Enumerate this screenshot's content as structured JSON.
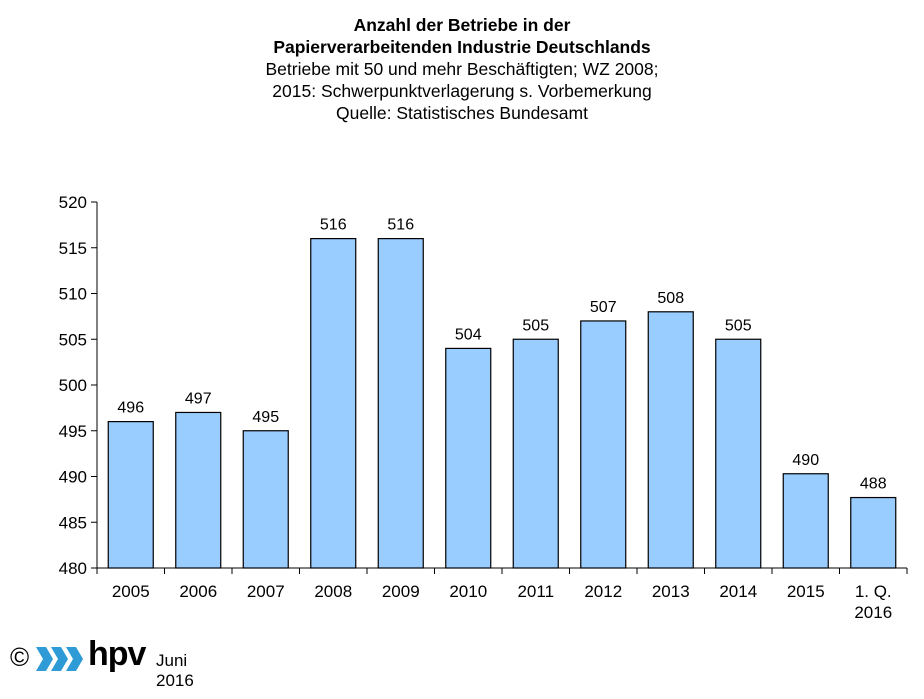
{
  "chart_data": {
    "type": "bar",
    "title_lines": [
      "Anzahl der Betriebe in der",
      "Papierverarbeitenden Industrie Deutschlands"
    ],
    "subtitle_lines": [
      "Betriebe mit 50 und mehr Beschäftigten; WZ 2008;",
      "2015: Schwerpunktverlagerung s. Vorbemerkung",
      "Quelle: Statistisches Bundesamt"
    ],
    "categories": [
      [
        "2005"
      ],
      [
        "2006"
      ],
      [
        "2007"
      ],
      [
        "2008"
      ],
      [
        "2009"
      ],
      [
        "2010"
      ],
      [
        "2011"
      ],
      [
        "2012"
      ],
      [
        "2013"
      ],
      [
        "2014"
      ],
      [
        "2015"
      ],
      [
        "1. Q.",
        "2016"
      ]
    ],
    "values": [
      496,
      497,
      495,
      516,
      516,
      504,
      505,
      507,
      508,
      505,
      490.3,
      487.7
    ],
    "data_labels": [
      "496",
      "497",
      "495",
      "516",
      "516",
      "504",
      "505",
      "507",
      "508",
      "505",
      "490",
      "488"
    ],
    "ylim": [
      480,
      520
    ],
    "yticks": [
      480,
      485,
      490,
      495,
      500,
      505,
      510,
      515,
      520
    ],
    "grid": false,
    "bar_color": "#99ccff",
    "bar_stroke": "#000000"
  },
  "footer": {
    "copyright_symbol": "©",
    "logo_text": "hpv",
    "date": "Juni 2016",
    "logo_color": "#2e9bd6"
  }
}
